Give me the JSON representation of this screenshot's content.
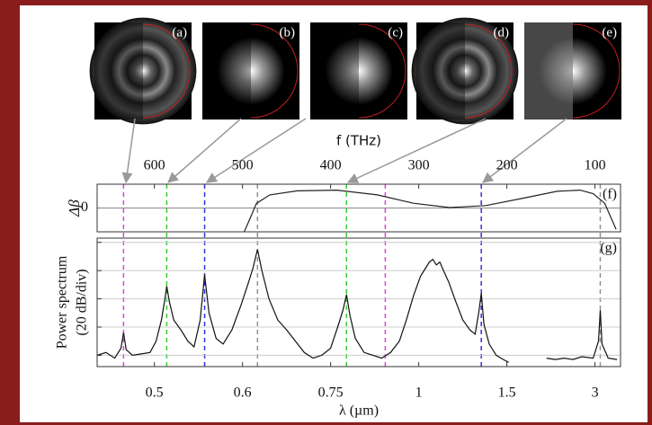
{
  "images": [
    {
      "label": "(a)"
    },
    {
      "label": "(b)"
    },
    {
      "label": "(c)"
    },
    {
      "label": "(d)"
    },
    {
      "label": "(e)"
    }
  ],
  "chart_data": [
    {
      "type": "line",
      "label": "(f)",
      "ylabel": "Δβ",
      "xlabel": "f (THz)",
      "color": "#222222",
      "x": [
        498,
        484,
        469,
        438,
        393,
        347,
        306,
        265,
        224,
        183,
        143,
        117,
        102,
        89,
        76
      ],
      "values": [
        -1,
        0.2,
        0.55,
        0.72,
        0.75,
        0.55,
        0.2,
        0.02,
        0.1,
        0.4,
        0.7,
        0.75,
        0.6,
        0.2,
        -0.9
      ],
      "xlim": [
        665,
        71
      ],
      "ylim": [
        -1,
        1
      ],
      "yticks": [
        0
      ],
      "xticks": [
        600,
        500,
        400,
        300,
        200,
        100
      ],
      "markers": [
        {
          "x": 635,
          "color": "#e040e0"
        },
        {
          "x": 338,
          "color": "#e040e0"
        },
        {
          "x": 586,
          "color": "#30d030"
        },
        {
          "x": 382,
          "color": "#30d030"
        },
        {
          "x": 543,
          "color": "#3030e0"
        },
        {
          "x": 229,
          "color": "#3030e0"
        },
        {
          "x": 483,
          "color": "#909090"
        },
        {
          "x": 94,
          "color": "#909090"
        }
      ]
    },
    {
      "type": "line",
      "label": "(g)",
      "ylabel": [
        "Power spectrum",
        "(20 dB/div)"
      ],
      "xlabel": "λ (µm)",
      "color": "#111111",
      "grid": true,
      "x": [
        665,
        655,
        645,
        638,
        635,
        632,
        625,
        615,
        605,
        598,
        592,
        588,
        586,
        583,
        578,
        570,
        562,
        555,
        548,
        543,
        538,
        530,
        522,
        512,
        502,
        494,
        488,
        483,
        478,
        470,
        460,
        450,
        440,
        430,
        420,
        410,
        400,
        392,
        386,
        382,
        378,
        372,
        362,
        352,
        342,
        332,
        322,
        314,
        306,
        298,
        292,
        288,
        284,
        280,
        276,
        272,
        266,
        258,
        250,
        242,
        236,
        232,
        229,
        226,
        220,
        212,
        204,
        198,
        180,
        155,
        145,
        135,
        125,
        115,
        102,
        96,
        94,
        92,
        85,
        75
      ],
      "values": [
        -80,
        -78,
        -82,
        -75,
        -64,
        -76,
        -80,
        -79,
        -78,
        -70,
        -55,
        -40,
        -31,
        -42,
        -55,
        -62,
        -70,
        -74,
        -55,
        -23,
        -50,
        -68,
        -72,
        -62,
        -45,
        -30,
        -18,
        -5,
        -20,
        -40,
        -55,
        -62,
        -70,
        -78,
        -82,
        -80,
        -75,
        -60,
        -48,
        -37,
        -52,
        -68,
        -78,
        -80,
        -82,
        -78,
        -70,
        -55,
        -38,
        -24,
        -18,
        -14,
        -12,
        -16,
        -14,
        -20,
        -28,
        -42,
        -55,
        -62,
        -65,
        -50,
        -36,
        -58,
        -72,
        -80,
        -83,
        -85,
        null,
        -82,
        -83,
        -82,
        -83,
        -81,
        -82,
        -70,
        -48,
        -72,
        -82,
        -83
      ],
      "xlim": [
        665,
        71
      ],
      "ylim": [
        -88,
        3
      ],
      "yticks": [
        -80,
        -60,
        -40,
        -20,
        0
      ],
      "xticks": [
        {
          "value": 600,
          "label": "0.5"
        },
        {
          "value": 500,
          "label": "0.6"
        },
        {
          "value": 400,
          "label": "0.75"
        },
        {
          "value": 300,
          "label": "1"
        },
        {
          "value": 200,
          "label": "1.5"
        },
        {
          "value": 100,
          "label": "3"
        }
      ]
    }
  ]
}
